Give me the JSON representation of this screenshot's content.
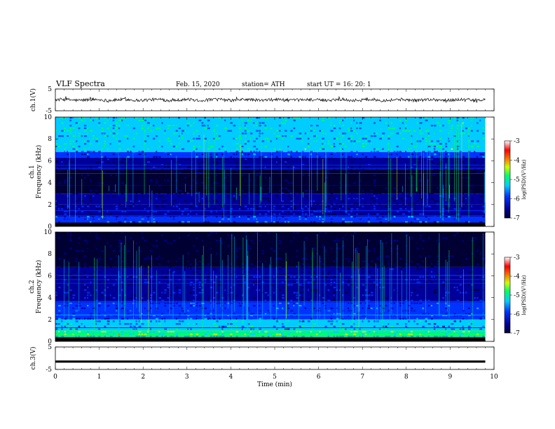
{
  "header": {
    "title": "VLF  Spectra",
    "date": "Feb. 15, 2020",
    "station": "station= ATH",
    "start": "start  UT  =    16: 20: 1"
  },
  "chart_data": [
    {
      "type": "line",
      "name": "ch1-waveform",
      "ylabel": "ch.1(V)",
      "ylim": [
        -5,
        5
      ],
      "y_ticks": [
        "5",
        "-5"
      ],
      "xlim": [
        0,
        10
      ],
      "approx_level": 0,
      "approx_amplitude": 0.7,
      "duration_min": 9.8
    },
    {
      "type": "heatmap",
      "name": "ch1-spectrogram",
      "ylabel": "ch.1\nFrequency (kHz)",
      "ylim": [
        0,
        10
      ],
      "y_ticks": [
        "0",
        "2",
        "4",
        "6",
        "8",
        "10"
      ],
      "xlim": [
        0,
        10
      ],
      "duration_min": 9.8,
      "colorbar_label": "log(PSD)(V²/Hz)",
      "colorbar_ticks": [
        "-3",
        "-4",
        "-5",
        "-6",
        "-7"
      ],
      "colorbar_range": [
        -7,
        -3
      ],
      "bands": [
        {
          "from_khz": 6.8,
          "to_khz": 10.0,
          "log_psd": -5.0
        },
        {
          "from_khz": 6.3,
          "to_khz": 6.8,
          "log_psd": -5.8
        },
        {
          "from_khz": 5.2,
          "to_khz": 6.3,
          "log_psd": -6.4
        },
        {
          "from_khz": 3.0,
          "to_khz": 5.2,
          "log_psd": -6.9
        },
        {
          "from_khz": 2.0,
          "to_khz": 3.0,
          "log_psd": -6.4
        },
        {
          "from_khz": 0.9,
          "to_khz": 2.0,
          "log_psd": -6.1
        },
        {
          "from_khz": 0.3,
          "to_khz": 0.9,
          "log_psd": -5.6
        },
        {
          "from_khz": 0.0,
          "to_khz": 0.3,
          "log_psd": -7.0
        }
      ]
    },
    {
      "type": "heatmap",
      "name": "ch2-spectrogram",
      "ylabel": "ch.2\nFrequency (kHz)",
      "ylim": [
        0,
        10
      ],
      "y_ticks": [
        "0",
        "2",
        "4",
        "6",
        "8",
        "10"
      ],
      "xlim": [
        0,
        10
      ],
      "duration_min": 9.8,
      "colorbar_label": "log(PSD)(V²/Hz)",
      "colorbar_ticks": [
        "-3",
        "-4",
        "-5",
        "-6",
        "-7"
      ],
      "colorbar_range": [
        -7,
        -3
      ],
      "bands": [
        {
          "from_khz": 6.8,
          "to_khz": 10.0,
          "log_psd": -6.8
        },
        {
          "from_khz": 6.0,
          "to_khz": 6.8,
          "log_psd": -6.5
        },
        {
          "from_khz": 3.5,
          "to_khz": 6.0,
          "log_psd": -6.1
        },
        {
          "from_khz": 2.0,
          "to_khz": 3.5,
          "log_psd": -5.8
        },
        {
          "from_khz": 1.0,
          "to_khz": 2.0,
          "log_psd": -5.3
        },
        {
          "from_khz": 0.4,
          "to_khz": 1.0,
          "log_psd": -4.5
        },
        {
          "from_khz": 0.0,
          "to_khz": 0.4,
          "log_psd": -7.0
        }
      ]
    },
    {
      "type": "line",
      "name": "ch3-waveform",
      "ylabel": "ch.3(V)",
      "ylim": [
        -5,
        5
      ],
      "y_ticks": [
        "5",
        "-5"
      ],
      "xlim": [
        0,
        10
      ],
      "approx_level": -1.5,
      "approx_amplitude": 0.15,
      "duration_min": 9.8,
      "xlabel": "Time  (min)",
      "x_ticks": [
        "0",
        "1",
        "2",
        "3",
        "4",
        "5",
        "6",
        "7",
        "8",
        "9",
        "10"
      ]
    }
  ],
  "colors": {
    "colormap": [
      "#000033",
      "#000099",
      "#0033ff",
      "#00ccff",
      "#00ff66",
      "#ccff00",
      "#ff6600",
      "#ff0000",
      "#ffffff"
    ]
  }
}
